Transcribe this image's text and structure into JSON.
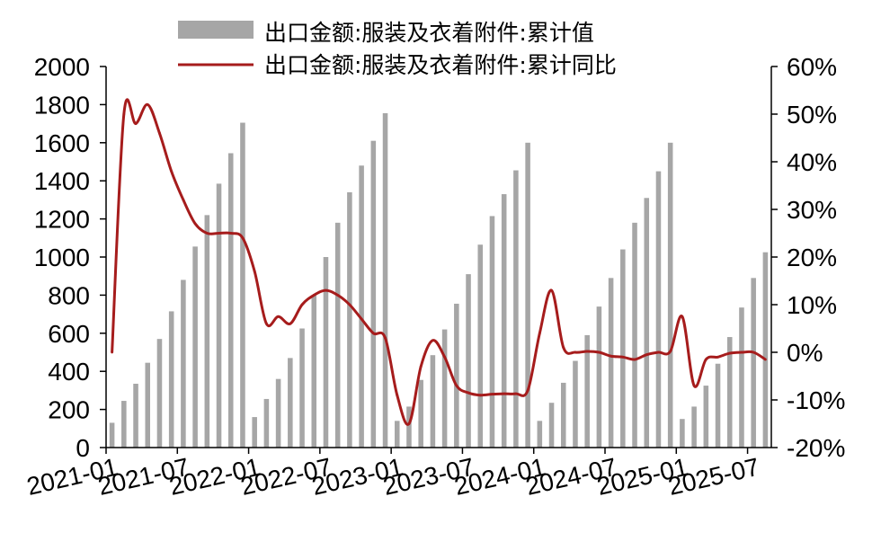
{
  "chart_data": {
    "type": "bar+line",
    "title": "",
    "x_tick_labels": [
      "2021-01",
      "2021-07",
      "2022-01",
      "2022-07",
      "2023-01",
      "2023-07",
      "2024-01",
      "2024-07",
      "2025-01",
      "2025-07"
    ],
    "y_left": {
      "ylim": [
        0,
        2000
      ],
      "ticks": [
        "0",
        "200",
        "400",
        "600",
        "800",
        "1000",
        "1200",
        "1400",
        "1600",
        "1800",
        "2000"
      ]
    },
    "y_right": {
      "ylim": [
        -20,
        60
      ],
      "ticks": [
        "-20%",
        "-10%",
        "0%",
        "10%",
        "20%",
        "30%",
        "40%",
        "50%",
        "60%"
      ]
    },
    "legend": {
      "position": "top-center"
    },
    "series": [
      {
        "name": "出口金额:服装及衣着附件:累计值",
        "type": "bar",
        "axis": "left",
        "color": "#A6A6A6",
        "data": [
          [
            "2021-01",
            130
          ],
          [
            "2021-02",
            245
          ],
          [
            "2021-03",
            335
          ],
          [
            "2021-04",
            445
          ],
          [
            "2021-05",
            570
          ],
          [
            "2021-06",
            715
          ],
          [
            "2021-07",
            880
          ],
          [
            "2021-08",
            1055
          ],
          [
            "2021-09",
            1220
          ],
          [
            "2021-10",
            1385
          ],
          [
            "2021-11",
            1545
          ],
          [
            "2021-12",
            1705
          ],
          [
            "2022-01",
            160
          ],
          [
            "2022-02",
            255
          ],
          [
            "2022-03",
            360
          ],
          [
            "2022-04",
            470
          ],
          [
            "2022-05",
            625
          ],
          [
            "2022-06",
            800
          ],
          [
            "2022-07",
            1000
          ],
          [
            "2022-08",
            1180
          ],
          [
            "2022-09",
            1340
          ],
          [
            "2022-10",
            1480
          ],
          [
            "2022-11",
            1610
          ],
          [
            "2022-12",
            1755
          ],
          [
            "2023-01",
            140
          ],
          [
            "2023-02",
            215
          ],
          [
            "2023-03",
            355
          ],
          [
            "2023-04",
            485
          ],
          [
            "2023-05",
            620
          ],
          [
            "2023-06",
            755
          ],
          [
            "2023-07",
            910
          ],
          [
            "2023-08",
            1065
          ],
          [
            "2023-09",
            1215
          ],
          [
            "2023-10",
            1330
          ],
          [
            "2023-11",
            1455
          ],
          [
            "2023-12",
            1600
          ],
          [
            "2024-01",
            140
          ],
          [
            "2024-02",
            235
          ],
          [
            "2024-03",
            340
          ],
          [
            "2024-04",
            455
          ],
          [
            "2024-05",
            590
          ],
          [
            "2024-06",
            740
          ],
          [
            "2024-07",
            890
          ],
          [
            "2024-08",
            1040
          ],
          [
            "2024-09",
            1180
          ],
          [
            "2024-10",
            1310
          ],
          [
            "2024-11",
            1450
          ],
          [
            "2024-12",
            1600
          ],
          [
            "2025-01",
            150
          ],
          [
            "2025-02",
            215
          ],
          [
            "2025-03",
            325
          ],
          [
            "2025-04",
            440
          ],
          [
            "2025-05",
            580
          ],
          [
            "2025-06",
            735
          ],
          [
            "2025-07",
            890
          ],
          [
            "2025-08",
            1025
          ]
        ]
      },
      {
        "name": "出口金额:服装及衣着附件:累计同比",
        "type": "line",
        "axis": "right",
        "color": "#A61C1C",
        "data": [
          [
            "2021-01",
            0
          ],
          [
            "2021-02",
            50
          ],
          [
            "2021-03",
            48
          ],
          [
            "2021-04",
            52
          ],
          [
            "2021-05",
            46
          ],
          [
            "2021-06",
            38
          ],
          [
            "2021-07",
            32
          ],
          [
            "2021-08",
            27
          ],
          [
            "2021-09",
            25
          ],
          [
            "2021-10",
            25
          ],
          [
            "2021-11",
            25
          ],
          [
            "2021-12",
            24
          ],
          [
            "2022-01",
            17
          ],
          [
            "2022-02",
            6
          ],
          [
            "2022-03",
            7.5
          ],
          [
            "2022-04",
            6
          ],
          [
            "2022-05",
            10
          ],
          [
            "2022-06",
            12
          ],
          [
            "2022-07",
            13
          ],
          [
            "2022-08",
            12
          ],
          [
            "2022-09",
            10
          ],
          [
            "2022-10",
            7
          ],
          [
            "2022-11",
            4
          ],
          [
            "2022-12",
            3
          ],
          [
            "2023-01",
            -9
          ],
          [
            "2023-02",
            -15
          ],
          [
            "2023-03",
            -3
          ],
          [
            "2023-04",
            2.5
          ],
          [
            "2023-05",
            -1
          ],
          [
            "2023-06",
            -7
          ],
          [
            "2023-07",
            -8.5
          ],
          [
            "2023-08",
            -9
          ],
          [
            "2023-09",
            -8.8
          ],
          [
            "2023-10",
            -8.7
          ],
          [
            "2023-11",
            -8.7
          ],
          [
            "2023-12",
            -8
          ],
          [
            "2024-01",
            4
          ],
          [
            "2024-02",
            13
          ],
          [
            "2024-03",
            1
          ],
          [
            "2024-04",
            0
          ],
          [
            "2024-05",
            0.2
          ],
          [
            "2024-06",
            0
          ],
          [
            "2024-07",
            -0.8
          ],
          [
            "2024-08",
            -1
          ],
          [
            "2024-09",
            -1.5
          ],
          [
            "2024-10",
            -0.5
          ],
          [
            "2024-11",
            0
          ],
          [
            "2024-12",
            0.2
          ],
          [
            "2025-01",
            7.5
          ],
          [
            "2025-02",
            -7
          ],
          [
            "2025-03",
            -1.5
          ],
          [
            "2025-04",
            -1
          ],
          [
            "2025-05",
            -0.2
          ],
          [
            "2025-06",
            0
          ],
          [
            "2025-07",
            0
          ],
          [
            "2025-08",
            -1.5
          ]
        ]
      }
    ]
  }
}
